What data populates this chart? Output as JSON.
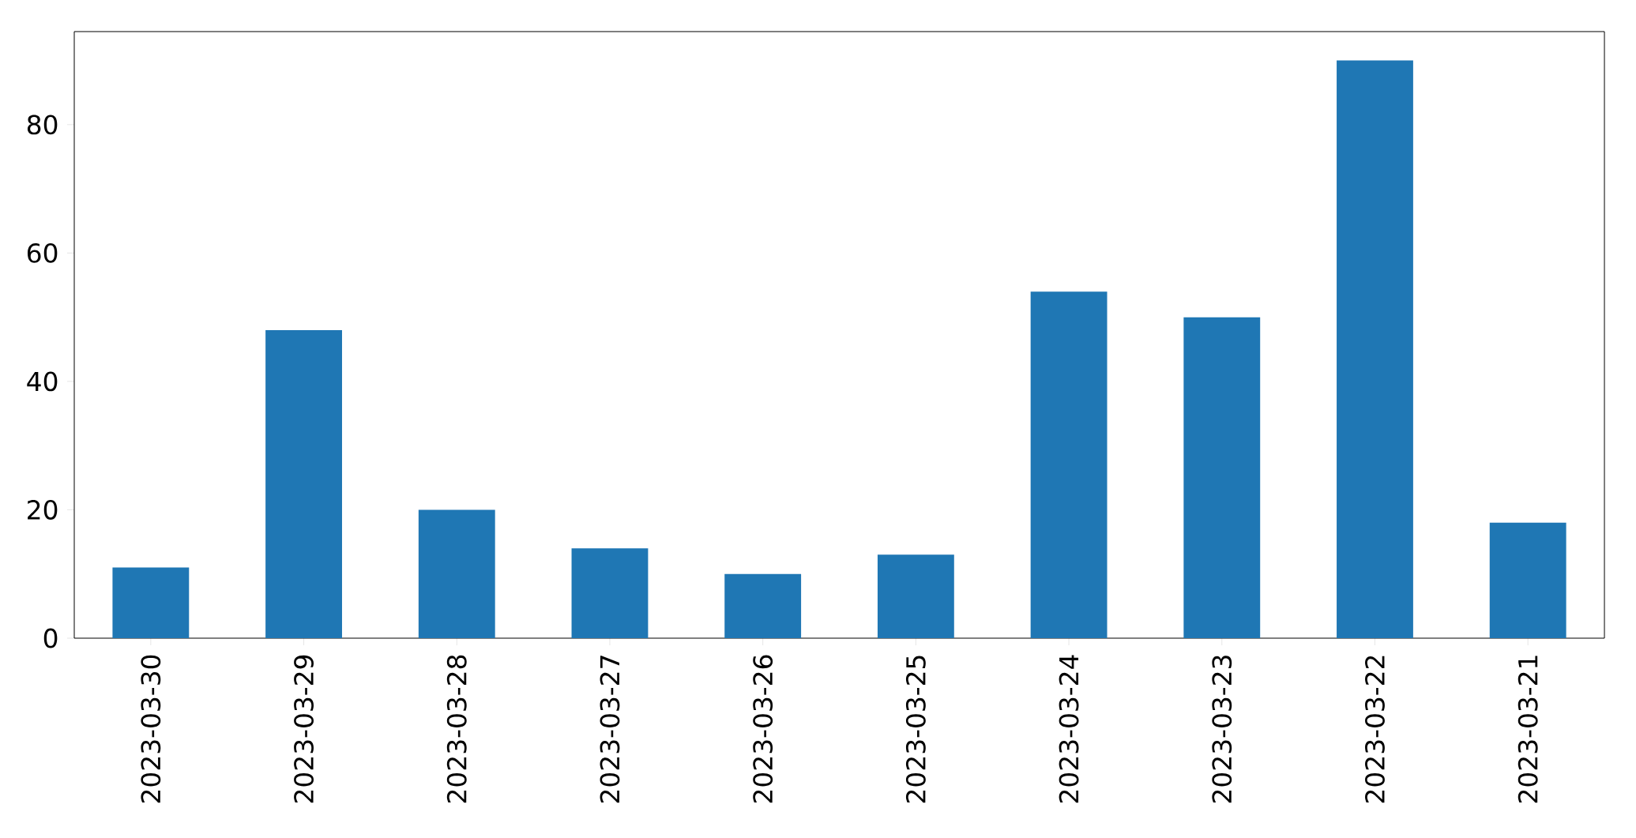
{
  "chart_data": {
    "type": "bar",
    "categories": [
      "2023-03-30",
      "2023-03-29",
      "2023-03-28",
      "2023-03-27",
      "2023-03-26",
      "2023-03-25",
      "2023-03-24",
      "2023-03-23",
      "2023-03-22",
      "2023-03-21"
    ],
    "values": [
      11,
      48,
      20,
      14,
      10,
      13,
      54,
      50,
      90,
      18
    ],
    "color": "#1f77b4",
    "ylim": [
      0,
      94.5
    ],
    "yticks": [
      0,
      20,
      40,
      60,
      80
    ]
  }
}
